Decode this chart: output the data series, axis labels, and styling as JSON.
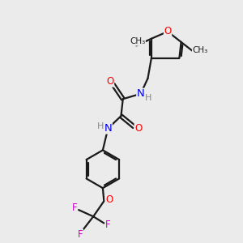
{
  "bg_color": "#ebebeb",
  "bond_color": "#1a1a1a",
  "bond_width": 1.6,
  "atom_colors": {
    "O": "#ff0000",
    "N": "#0000ee",
    "F": "#cc00cc",
    "H": "#888888",
    "C": "#1a1a1a"
  },
  "font_size": 8.5,
  "fig_size": [
    3.0,
    3.0
  ],
  "dpi": 100
}
